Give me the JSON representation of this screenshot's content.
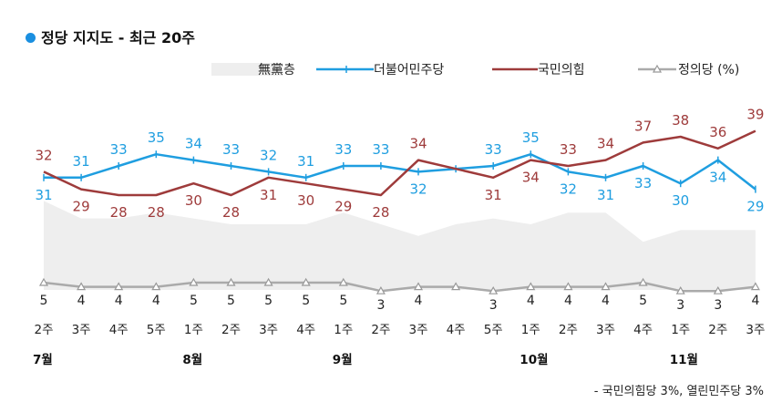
{
  "title": "정당 지지도 - 최근 20주",
  "footnote": "- 국민의힘당 3%, 열린민주당 3%",
  "colors": {
    "title_dot": "#1a8fe0",
    "minjoo": "#1f9ee0",
    "ppp": "#9e3b3b",
    "justice": "#aaaaaa",
    "independent": "#eeeeee"
  },
  "chart_data": {
    "type": "line",
    "title": "정당 지지도 - 최근 20주",
    "categories": [
      "2주",
      "3주",
      "4주",
      "5주",
      "1주",
      "2주",
      "3주",
      "4주",
      "1주",
      "2주",
      "3주",
      "4주",
      "5주",
      "1주",
      "2주",
      "3주",
      "4주",
      "1주",
      "2주",
      "3주"
    ],
    "months": [
      {
        "label": "7월",
        "index": 0
      },
      {
        "label": "8월",
        "index": 4
      },
      {
        "label": "9월",
        "index": 8
      },
      {
        "label": "10월",
        "index": 13
      },
      {
        "label": "11월",
        "index": 17
      }
    ],
    "series": [
      {
        "name": "無黨층",
        "type": "area",
        "values": [
          27,
          24,
          24,
          25,
          24,
          23,
          23,
          23,
          25,
          23,
          21,
          23,
          24,
          23,
          25,
          25,
          20,
          22,
          22,
          22
        ],
        "labels_shown": false
      },
      {
        "name": "더불어민주당",
        "type": "line",
        "values": [
          31,
          31,
          33,
          35,
          34,
          33,
          32,
          31,
          33,
          33,
          32,
          null,
          33,
          35,
          32,
          31,
          33,
          30,
          34,
          29
        ],
        "labels": [
          "31",
          "31",
          "33",
          "35",
          "34",
          "33",
          "32",
          "31",
          "33",
          "33",
          "32",
          "",
          "33",
          "35",
          "32",
          "31",
          "33",
          "30",
          "34",
          "29"
        ]
      },
      {
        "name": "국민의힘",
        "type": "line",
        "values": [
          32,
          29,
          28,
          28,
          30,
          28,
          31,
          30,
          29,
          28,
          34,
          null,
          31,
          34,
          33,
          34,
          37,
          38,
          36,
          39
        ],
        "labels": [
          "32",
          "29",
          "28",
          "28",
          "30",
          "28",
          "31",
          "30",
          "29",
          "28",
          "34",
          "",
          "31",
          "34",
          "33",
          "34",
          "37",
          "38",
          "36",
          "39"
        ]
      },
      {
        "name": "정의당 (%)",
        "type": "line",
        "values": [
          5,
          4,
          4,
          4,
          5,
          5,
          5,
          5,
          5,
          3,
          4,
          4,
          3,
          4,
          4,
          4,
          5,
          3,
          3,
          4
        ],
        "labels": [
          "5",
          "4",
          "4",
          "4",
          "5",
          "5",
          "5",
          "5",
          "5",
          "3",
          "4",
          "",
          "3",
          "4",
          "4",
          "4",
          "5",
          "3",
          "3",
          "4"
        ]
      }
    ]
  }
}
